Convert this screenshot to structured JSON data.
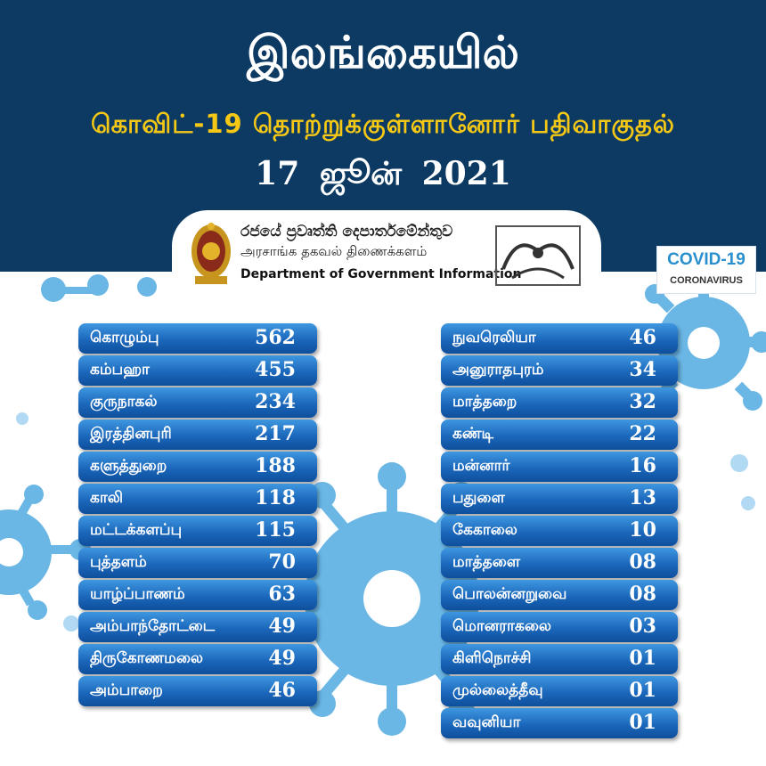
{
  "header": {
    "title": "இலங்கையில்",
    "subtitle": "கொவிட்-19 தொற்றுக்குள்ளானோர் பதிவாகுதல்",
    "date": "17 ஜூன் 2021"
  },
  "department": {
    "name_sinhala": "රජයේ ප්‍රවෘත්ති දෙපාර්තමේන්තුව",
    "name_tamil": "அரசாங்க தகவல் திணைக்களம்",
    "name_english": "Department of Government Information"
  },
  "badge": {
    "title": "COVID-19",
    "subtitle": "CORONAVIRUS"
  },
  "colors": {
    "header_bg": "#0c3a63",
    "subtitle_yellow": "#f5c816",
    "row_blue": "#1b67bb",
    "virus_blue": "#5aaee3"
  },
  "districts_left": [
    {
      "name": "கொழும்பு",
      "count": "562"
    },
    {
      "name": "கம்பஹா",
      "count": "455"
    },
    {
      "name": "குருநாகல்",
      "count": "234"
    },
    {
      "name": "இரத்தினபுரி",
      "count": "217"
    },
    {
      "name": "களுத்துறை",
      "count": "188"
    },
    {
      "name": "காலி",
      "count": "118"
    },
    {
      "name": "மட்டக்களப்பு",
      "count": "115"
    },
    {
      "name": "புத்தளம்",
      "count": "70"
    },
    {
      "name": "யாழ்ப்பாணம்",
      "count": "63"
    },
    {
      "name": "அம்பாந்தோட்டை",
      "count": "49"
    },
    {
      "name": "திருகோணமலை",
      "count": "49"
    },
    {
      "name": "அம்பாறை",
      "count": "46"
    }
  ],
  "districts_right": [
    {
      "name": "நுவரெலியா",
      "count": "46"
    },
    {
      "name": "அனுராதபுரம்",
      "count": "34"
    },
    {
      "name": "மாத்தறை",
      "count": "32"
    },
    {
      "name": "கண்டி",
      "count": "22"
    },
    {
      "name": "மன்னார்",
      "count": "16"
    },
    {
      "name": "பதுளை",
      "count": "13"
    },
    {
      "name": "கேகாலை",
      "count": "10"
    },
    {
      "name": "மாத்தளை",
      "count": "08"
    },
    {
      "name": "பொலன்னறுவை",
      "count": "08"
    },
    {
      "name": "மொனராகலை",
      "count": "03"
    },
    {
      "name": "கிளிநொச்சி",
      "count": "01"
    },
    {
      "name": "முல்லைத்தீவு",
      "count": "01"
    },
    {
      "name": "வவுனியா",
      "count": "01"
    }
  ]
}
